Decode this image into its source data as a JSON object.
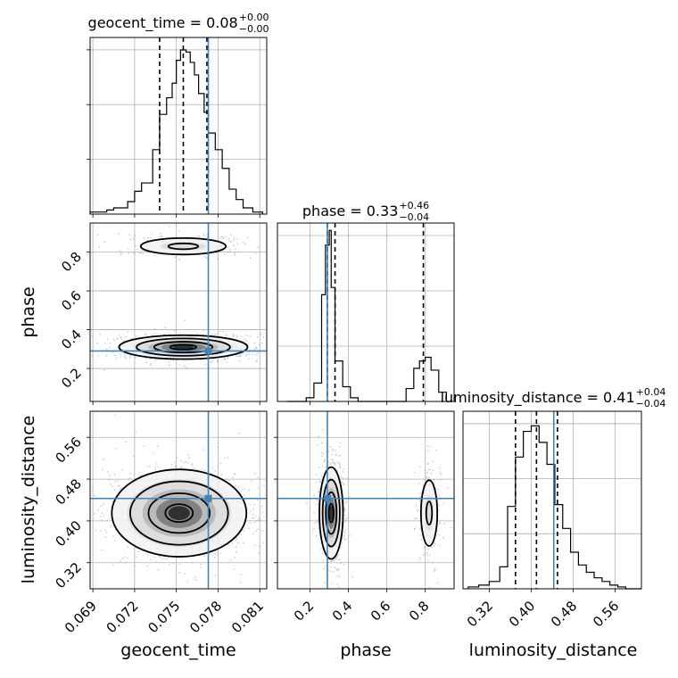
{
  "chart_data": {
    "type": "corner",
    "parameters": [
      "geocent_time",
      "phase",
      "luminosity_distance"
    ],
    "axis_labels": {
      "x": [
        "geocent_time",
        "phase",
        "luminosity_distance"
      ],
      "y": [
        "",
        "phase",
        "luminosity_distance"
      ]
    },
    "titles": [
      {
        "param": "geocent_time",
        "text": "geocent_time = 0.08",
        "sup": "+0.00",
        "sub": "−0.00"
      },
      {
        "param": "phase",
        "text": "phase = 0.33",
        "sup": "+0.46",
        "sub": "−0.04"
      },
      {
        "param": "luminosity_distance",
        "text": "luminosity_distance = 0.41",
        "sup": "+0.04",
        "sub": "−0.04"
      }
    ],
    "ranges": {
      "geocent_time": [
        0.0688,
        0.0815
      ],
      "phase": [
        0.03,
        0.95
      ],
      "luminosity_distance": [
        0.27,
        0.61
      ]
    },
    "ticks": {
      "geocent_time": [
        "0.069",
        "0.072",
        "0.075",
        "0.078",
        "0.081"
      ],
      "phase": [
        "0.2",
        "0.4",
        "0.6",
        "0.8"
      ],
      "luminosity_distance": [
        "0.32",
        "0.40",
        "0.48",
        "0.56"
      ]
    },
    "truths": {
      "geocent_time": 0.0773,
      "phase": 0.29,
      "luminosity_distance": 0.443
    },
    "quantiles": {
      "geocent_time": [
        0.0738,
        0.0755,
        0.0772
      ],
      "phase": [
        0.29,
        0.33,
        0.79
      ],
      "luminosity_distance": [
        0.37,
        0.41,
        0.45
      ]
    },
    "histograms": {
      "geocent_time": {
        "edges": [
          0.0688,
          0.07,
          0.0705,
          0.0715,
          0.072,
          0.0725,
          0.0733,
          0.0738,
          0.0743,
          0.0747,
          0.075,
          0.0753,
          0.0757,
          0.076,
          0.0763,
          0.0766,
          0.077,
          0.0773,
          0.0778,
          0.0783,
          0.0788,
          0.0793,
          0.0798,
          0.0805,
          0.0812
        ],
        "counts": [
          0.01,
          0.02,
          0.03,
          0.06,
          0.11,
          0.15,
          0.31,
          0.48,
          0.56,
          0.63,
          0.74,
          0.79,
          0.78,
          0.73,
          0.67,
          0.58,
          0.49,
          0.39,
          0.31,
          0.22,
          0.12,
          0.07,
          0.03,
          0.01
        ],
        "ymax": 0.85
      },
      "phase": {
        "edges": [
          0.08,
          0.18,
          0.22,
          0.26,
          0.28,
          0.3,
          0.31,
          0.33,
          0.37,
          0.41,
          0.45,
          0.7,
          0.74,
          0.77,
          0.8,
          0.83,
          0.87,
          0.91
        ],
        "counts": [
          0.0,
          0.02,
          0.1,
          0.58,
          0.85,
          0.93,
          0.62,
          0.22,
          0.08,
          0.02,
          0.0,
          0.07,
          0.18,
          0.22,
          0.24,
          0.17,
          0.05
        ],
        "ymax": 0.97
      },
      "luminosity_distance": {
        "edges": [
          0.28,
          0.3,
          0.32,
          0.34,
          0.355,
          0.37,
          0.385,
          0.4,
          0.415,
          0.43,
          0.445,
          0.46,
          0.475,
          0.49,
          0.505,
          0.52,
          0.535,
          0.55,
          0.565,
          0.58,
          0.61
        ],
        "counts": [
          0.01,
          0.02,
          0.04,
          0.12,
          0.45,
          0.72,
          0.86,
          0.89,
          0.8,
          0.68,
          0.46,
          0.33,
          0.2,
          0.13,
          0.09,
          0.06,
          0.04,
          0.02,
          0.01,
          0.0
        ],
        "ymax": 0.97
      }
    },
    "grid": true
  }
}
